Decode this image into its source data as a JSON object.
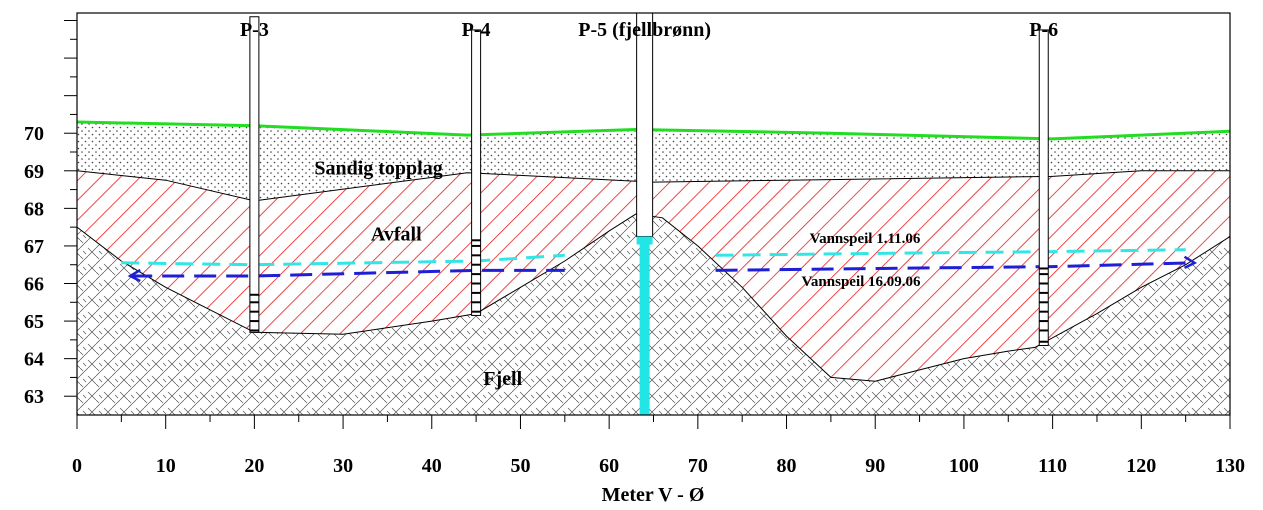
{
  "chart_data": {
    "type": "cross-section",
    "xlabel": "Meter V - Ø",
    "xlim": [
      0,
      130
    ],
    "ylim": [
      62.5,
      73.2
    ],
    "x_ticks": [
      0,
      10,
      20,
      30,
      40,
      50,
      60,
      70,
      80,
      90,
      100,
      110,
      120,
      130
    ],
    "x_tick_labels": [
      "0",
      "10",
      "20",
      "30",
      "40",
      "50",
      "60",
      "70",
      "80",
      "90",
      "100",
      "110",
      "120",
      "130"
    ],
    "y_ticks": [
      63,
      64,
      65,
      66,
      67,
      68,
      69,
      70
    ],
    "y_tick_labels": [
      "63",
      "64",
      "65",
      "66",
      "67",
      "68",
      "69",
      "70"
    ],
    "surfaces": {
      "terrain": [
        [
          0,
          70.3
        ],
        [
          20,
          70.2
        ],
        [
          44,
          69.95
        ],
        [
          63,
          70.1
        ],
        [
          85,
          70.0
        ],
        [
          110,
          69.85
        ],
        [
          130,
          70.05
        ]
      ],
      "topplag_base": [
        [
          0,
          69.0
        ],
        [
          10,
          68.75
        ],
        [
          20,
          68.2
        ],
        [
          44,
          68.95
        ],
        [
          65,
          68.7
        ],
        [
          80,
          68.75
        ],
        [
          110,
          68.85
        ],
        [
          120,
          69.0
        ],
        [
          130,
          69.0
        ]
      ],
      "bedrock": [
        [
          0,
          67.5
        ],
        [
          5,
          66.6
        ],
        [
          10,
          65.9
        ],
        [
          15,
          65.3
        ],
        [
          20,
          64.7
        ],
        [
          30,
          64.65
        ],
        [
          40,
          65.0
        ],
        [
          45,
          65.2
        ],
        [
          50,
          65.9
        ],
        [
          55,
          66.6
        ],
        [
          60,
          67.4
        ],
        [
          63,
          67.85
        ],
        [
          66,
          67.75
        ],
        [
          70,
          67.0
        ],
        [
          75,
          65.9
        ],
        [
          80,
          64.6
        ],
        [
          85,
          63.5
        ],
        [
          90,
          63.4
        ],
        [
          95,
          63.7
        ],
        [
          100,
          64.0
        ],
        [
          105,
          64.2
        ],
        [
          108,
          64.3
        ],
        [
          115,
          65.2
        ],
        [
          120,
          65.9
        ],
        [
          125,
          66.5
        ],
        [
          130,
          67.25
        ]
      ]
    },
    "layers": [
      {
        "name": "Sandig topplag",
        "label_x": 34,
        "label_y": 68.9
      },
      {
        "name": "Avfall",
        "label_x": 36,
        "label_y": 67.15
      },
      {
        "name": "Fjell",
        "label_x": 48,
        "label_y": 63.3
      }
    ],
    "wells": [
      {
        "name": "P-3",
        "x": 20,
        "top": 73.1,
        "bottom": 64.7,
        "screen": [
          64.7,
          65.7
        ],
        "marks": [
          64.75,
          65.0,
          65.25,
          65.5,
          65.7
        ]
      },
      {
        "name": "P-4",
        "x": 45,
        "top": 72.75,
        "bottom": 65.15,
        "screen": [
          65.2,
          67.15
        ],
        "marks": [
          65.25,
          65.5,
          65.75,
          66.0,
          66.25,
          66.5,
          66.75,
          67.0,
          67.15
        ]
      },
      {
        "name": "P-5 (fjellbrønn)",
        "x": 64,
        "top": 73.2,
        "bottom": 62.5,
        "casing_bottom": 67.25,
        "open_hole": [
          62.5,
          67.25
        ],
        "water_level": 67.2
      },
      {
        "name": "P-6",
        "x": 109,
        "top": 72.75,
        "bottom": 64.35,
        "screen": [
          64.4,
          66.4
        ],
        "marks": [
          64.45,
          64.75,
          65.0,
          65.25,
          65.5,
          65.75,
          66.0,
          66.25,
          66.4
        ]
      }
    ],
    "water_levels": [
      {
        "name": "Vannspeil 1.11.06",
        "color": "#33e6e6",
        "points": [
          [
            5,
            66.55
          ],
          [
            20,
            66.5
          ],
          [
            45,
            66.6
          ],
          [
            55,
            66.75
          ]
        ],
        "points_east": [
          [
            72,
            66.75
          ],
          [
            90,
            66.8
          ],
          [
            110,
            66.85
          ],
          [
            125,
            66.9
          ]
        ]
      },
      {
        "name": "Vannspeil 16.09.06",
        "color": "#1f1fd6",
        "points": [
          [
            6,
            66.2
          ],
          [
            20,
            66.2
          ],
          [
            45,
            66.35
          ],
          [
            55,
            66.35
          ]
        ],
        "points_east": [
          [
            72,
            66.35
          ],
          [
            90,
            66.4
          ],
          [
            110,
            66.45
          ],
          [
            126,
            66.55
          ]
        ]
      }
    ],
    "colors": {
      "terrain": "#22dd22",
      "avfall_hatch": "#e81c1c",
      "bedrock_line": "#000000",
      "well_water": "#22e6e6"
    }
  }
}
